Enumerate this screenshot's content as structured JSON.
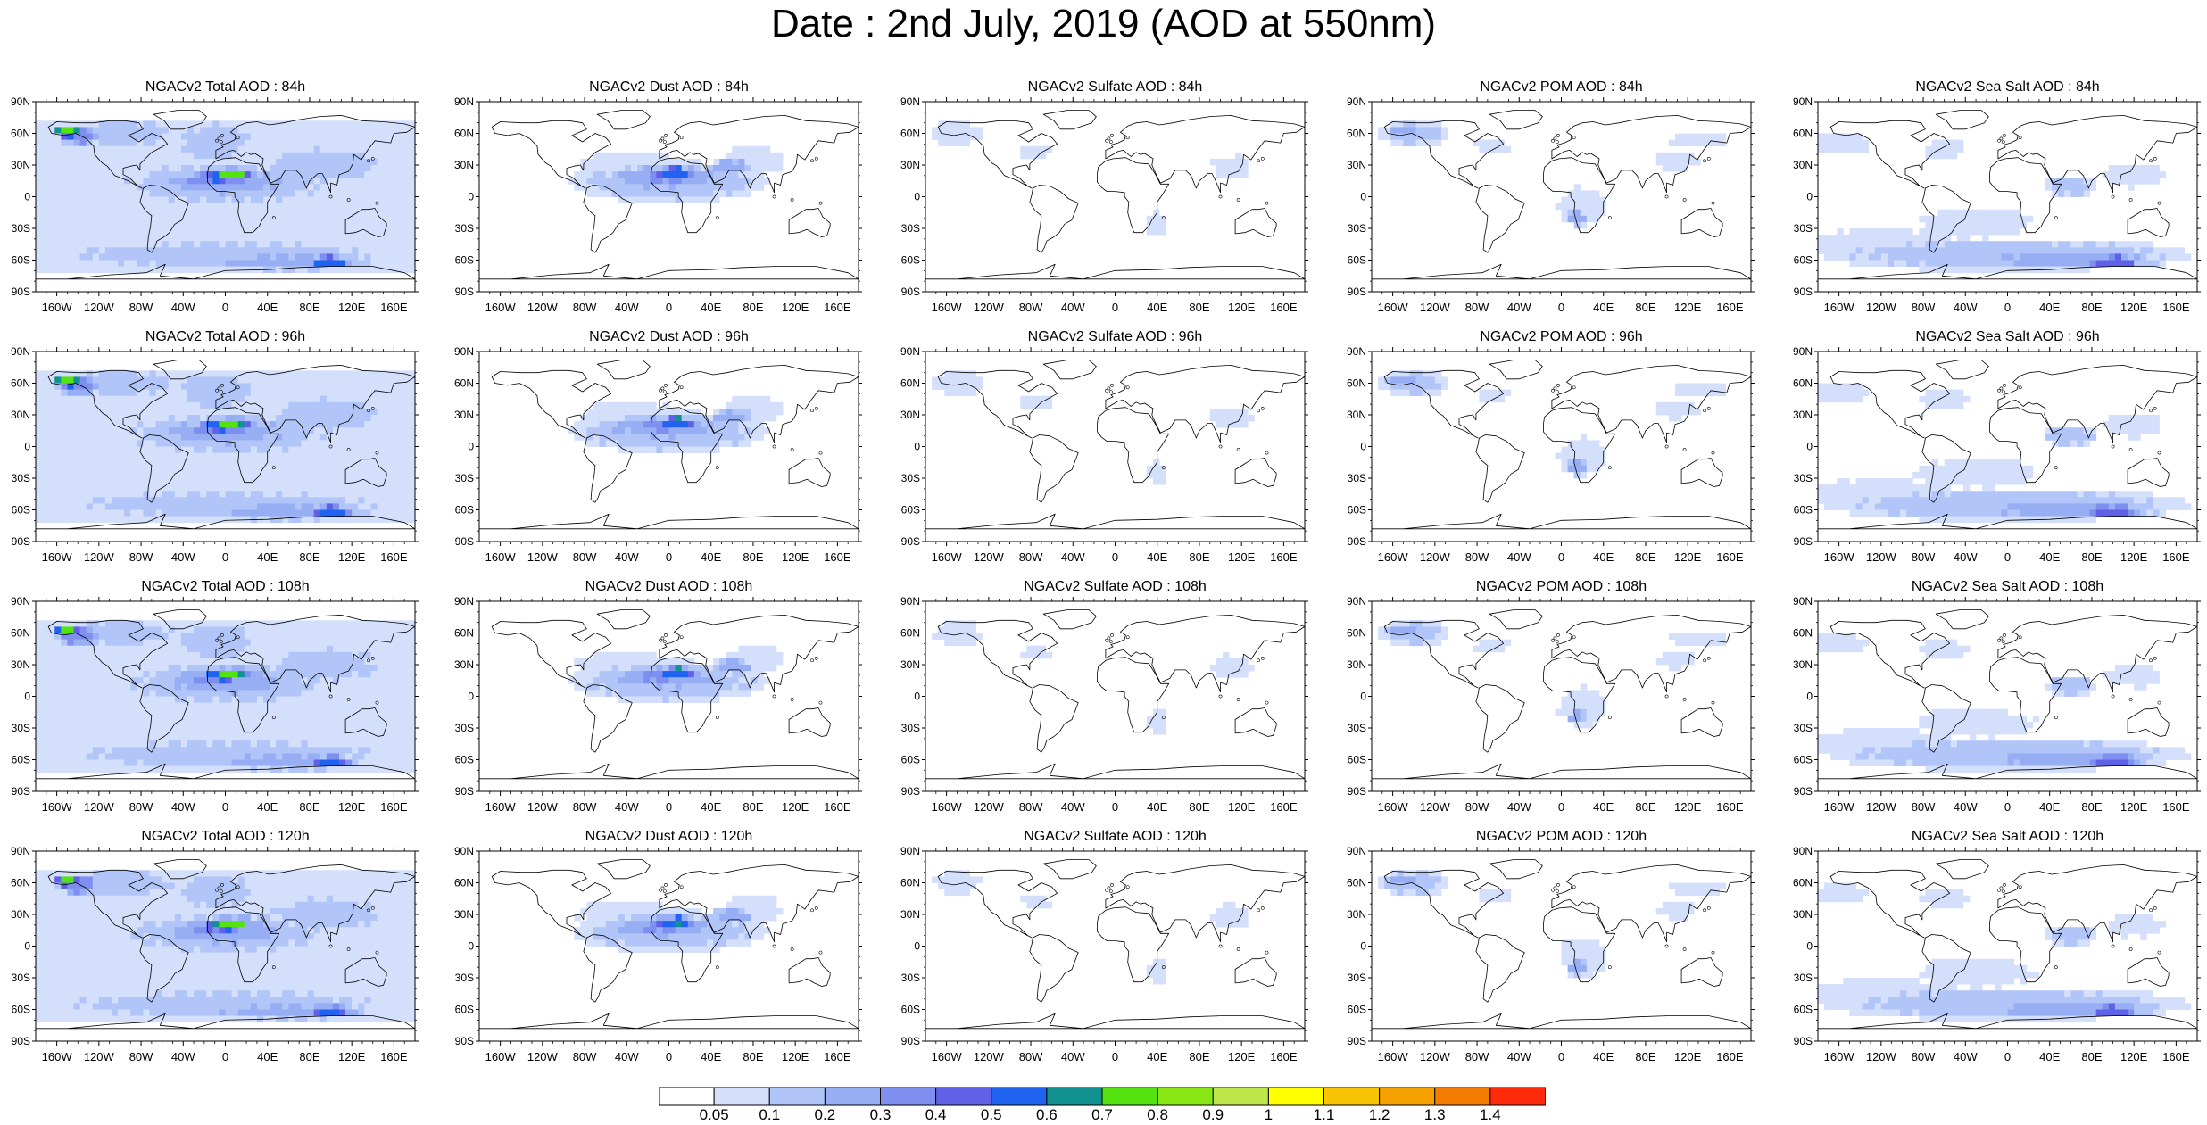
{
  "title": "Date : 2nd July, 2019 (AOD at 550nm)",
  "lat_labels": [
    "90N",
    "60N",
    "30N",
    "0",
    "30S",
    "60S",
    "90S"
  ],
  "lon_labels": [
    "160W",
    "120W",
    "80W",
    "40W",
    "0",
    "40E",
    "80E",
    "120E",
    "160E"
  ],
  "colorbar": {
    "colors": [
      "#ffffff",
      "#d4e0fb",
      "#b2c5f8",
      "#97aef4",
      "#7e8ff0",
      "#5f62e6",
      "#1f63f0",
      "#11918f",
      "#54e311",
      "#88e714",
      "#bce64a",
      "#ffff00",
      "#f9c404",
      "#f5a200",
      "#f47c00",
      "#ff2a0a"
    ],
    "labels": [
      "0.05",
      "0.1",
      "0.2",
      "0.3",
      "0.4",
      "0.5",
      "0.6",
      "0.7",
      "0.8",
      "0.9",
      "1",
      "1.1",
      "1.2",
      "1.3",
      "1.4"
    ]
  },
  "panels": [
    {
      "title": "NGACv2 Total AOD : 84h",
      "field": "total"
    },
    {
      "title": "NGACv2 Dust AOD : 84h",
      "field": "dust"
    },
    {
      "title": "NGACv2 Sulfate AOD : 84h",
      "field": "sulfate"
    },
    {
      "title": "NGACv2 POM AOD : 84h",
      "field": "pom"
    },
    {
      "title": "NGACv2 Sea Salt AOD : 84h",
      "field": "seasalt"
    },
    {
      "title": "NGACv2 Total AOD : 96h",
      "field": "total"
    },
    {
      "title": "NGACv2 Dust AOD : 96h",
      "field": "dust"
    },
    {
      "title": "NGACv2 Sulfate AOD : 96h",
      "field": "sulfate"
    },
    {
      "title": "NGACv2 POM AOD : 96h",
      "field": "pom"
    },
    {
      "title": "NGACv2 Sea Salt AOD : 96h",
      "field": "seasalt"
    },
    {
      "title": "NGACv2 Total AOD : 108h",
      "field": "total"
    },
    {
      "title": "NGACv2 Dust AOD : 108h",
      "field": "dust"
    },
    {
      "title": "NGACv2 Sulfate AOD : 108h",
      "field": "sulfate"
    },
    {
      "title": "NGACv2 POM AOD : 108h",
      "field": "pom"
    },
    {
      "title": "NGACv2 Sea Salt AOD : 108h",
      "field": "seasalt"
    },
    {
      "title": "NGACv2 Total AOD : 120h",
      "field": "total"
    },
    {
      "title": "NGACv2 Dust AOD : 120h",
      "field": "dust"
    },
    {
      "title": "NGACv2 Sulfate AOD : 120h",
      "field": "sulfate"
    },
    {
      "title": "NGACv2 POM AOD : 120h",
      "field": "pom"
    },
    {
      "title": "NGACv2 Sea Salt  AOD : 120h",
      "field": "seasalt"
    }
  ]
}
